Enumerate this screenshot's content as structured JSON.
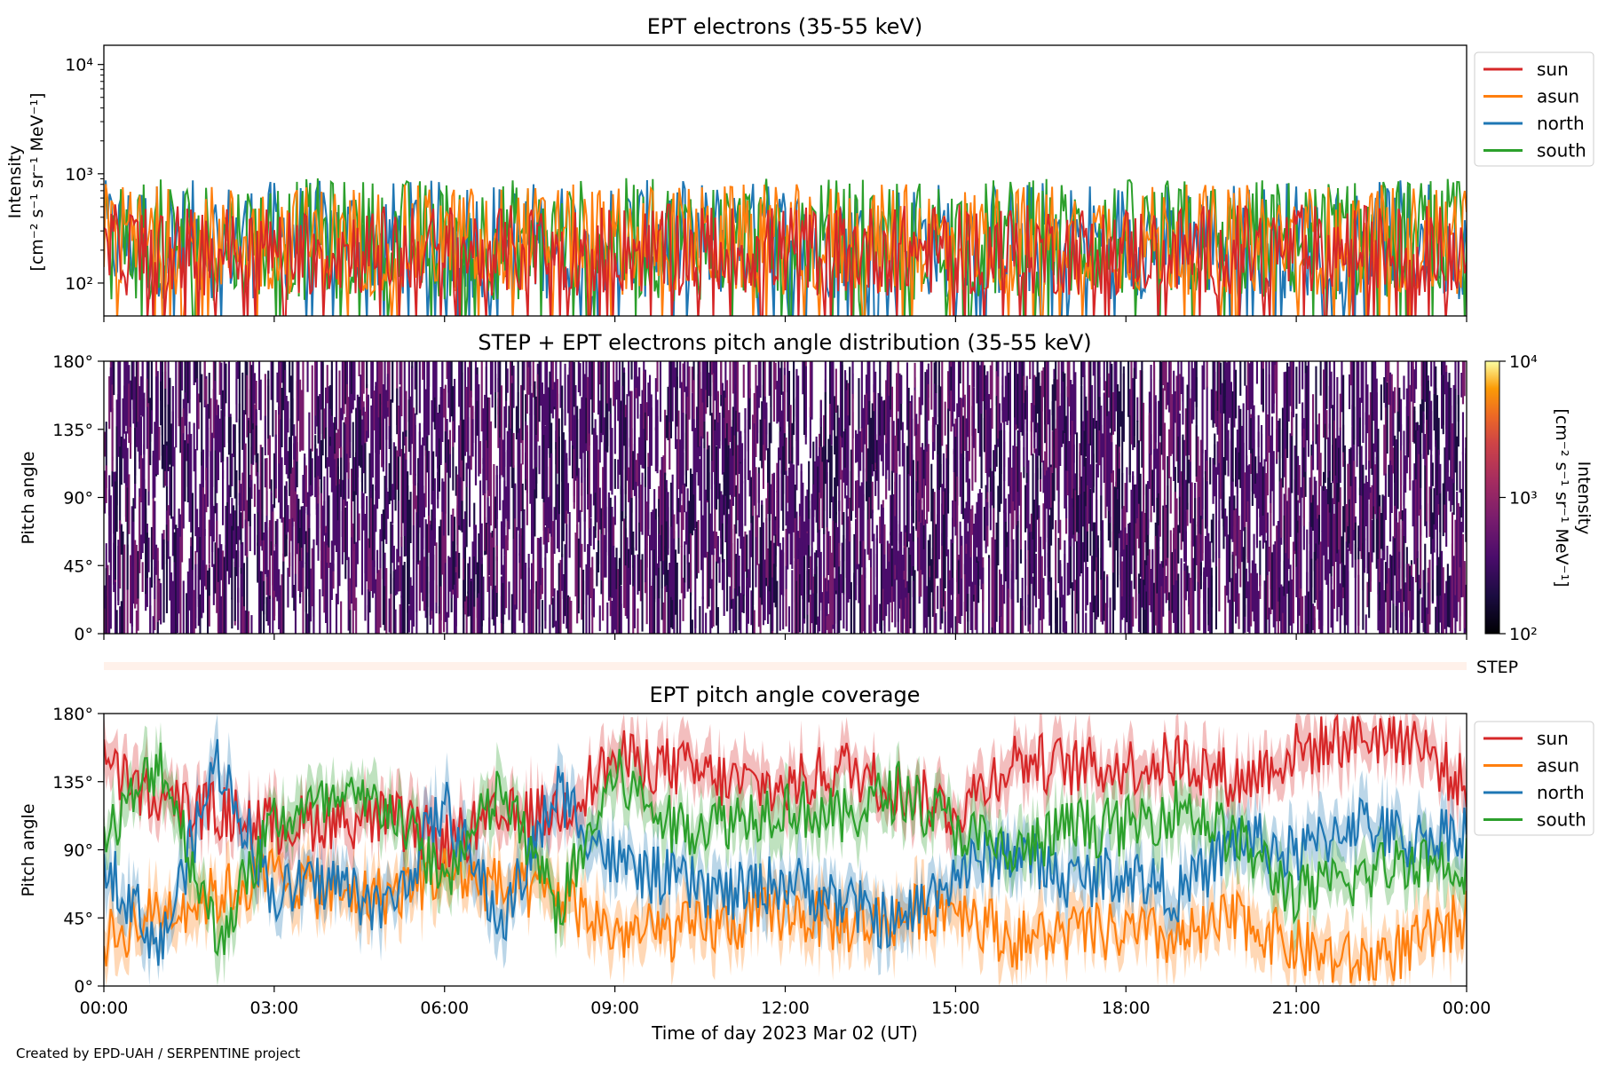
{
  "footer": "Created by EPD-UAH / SERPENTINE project",
  "series_colors": {
    "sun": "#d62728",
    "asun": "#ff7f0e",
    "north": "#1f77b4",
    "south": "#2ca02c"
  },
  "chart_data": [
    {
      "type": "line",
      "title": "EPT electrons (35-55 keV)",
      "ylabel_line1": "Intensity",
      "ylabel_line2": "[cm⁻² s⁻¹ sr⁻¹ MeV⁻¹]",
      "yscale": "log",
      "ylim": [
        50,
        15000
      ],
      "yticks": [
        "10²",
        "10³",
        "10⁴"
      ],
      "x_range": [
        "2023-03-02 00:00",
        "2023-03-03 00:00"
      ],
      "legend_position": "outside-right",
      "legend": [
        "sun",
        "asun",
        "north",
        "south"
      ],
      "series": [
        {
          "name": "sun",
          "typical_range": [
            100,
            500
          ],
          "median": 200
        },
        {
          "name": "asun",
          "typical_range": [
            100,
            700
          ],
          "median": 250
        },
        {
          "name": "north",
          "typical_range": [
            80,
            650
          ],
          "median": 250
        },
        {
          "name": "south",
          "typical_range": [
            80,
            700
          ],
          "median": 250
        }
      ]
    },
    {
      "type": "heatmap",
      "title": "STEP + EPT electrons pitch angle distribution (35-55 keV)",
      "ylabel": "Pitch angle",
      "ylim": [
        0,
        180
      ],
      "yticks": [
        "0°",
        "45°",
        "90°",
        "135°",
        "180°"
      ],
      "x_range": [
        "2023-03-02 00:00",
        "2023-03-03 00:00"
      ],
      "colorbar": {
        "label_line1": "Intensity",
        "label_line2": "[cm⁻² s⁻¹ sr⁻¹ MeV⁻¹]",
        "scale": "log",
        "range": [
          100,
          10000
        ],
        "ticks": [
          "10²",
          "10³",
          "10⁴"
        ],
        "colormap": "inferno"
      },
      "typical_intensity_range": [
        150,
        500
      ],
      "step_strip_label": "STEP"
    },
    {
      "type": "line",
      "title": "EPT pitch angle coverage",
      "ylabel": "Pitch angle",
      "xlabel": "Time of day 2023 Mar 02 (UT)",
      "ylim": [
        0,
        180
      ],
      "yticks": [
        "0°",
        "45°",
        "90°",
        "135°",
        "180°"
      ],
      "xticks": [
        "00:00",
        "03:00",
        "06:00",
        "09:00",
        "12:00",
        "15:00",
        "18:00",
        "21:00",
        "00:00"
      ],
      "legend_position": "outside-right",
      "legend": [
        "sun",
        "asun",
        "north",
        "south"
      ],
      "bands": "shaded ± spread around each line",
      "series": [
        {
          "name": "sun",
          "x": [
            "00:00",
            "01:00",
            "02:00",
            "03:00",
            "04:00",
            "05:00",
            "06:00",
            "07:00",
            "08:00",
            "09:00",
            "10:00",
            "11:00",
            "12:00",
            "13:00",
            "14:00",
            "15:00",
            "16:00",
            "17:00",
            "18:00",
            "19:00",
            "20:00",
            "21:00",
            "22:00",
            "23:00",
            "24:00"
          ],
          "values": [
            145,
            120,
            115,
            105,
            110,
            110,
            95,
            110,
            115,
            150,
            145,
            135,
            130,
            145,
            130,
            115,
            150,
            145,
            145,
            150,
            135,
            155,
            165,
            165,
            130
          ]
        },
        {
          "name": "asun",
          "x": [
            "00:00",
            "01:00",
            "02:00",
            "03:00",
            "04:00",
            "05:00",
            "06:00",
            "07:00",
            "08:00",
            "09:00",
            "10:00",
            "11:00",
            "12:00",
            "13:00",
            "14:00",
            "15:00",
            "16:00",
            "17:00",
            "18:00",
            "19:00",
            "20:00",
            "21:00",
            "22:00",
            "23:00",
            "24:00"
          ],
          "values": [
            30,
            50,
            60,
            75,
            60,
            60,
            75,
            65,
            60,
            35,
            35,
            40,
            50,
            40,
            45,
            55,
            30,
            35,
            35,
            30,
            45,
            25,
            15,
            25,
            45
          ]
        },
        {
          "name": "north",
          "x": [
            "00:00",
            "01:00",
            "02:00",
            "03:00",
            "04:00",
            "05:00",
            "06:00",
            "07:00",
            "08:00",
            "09:00",
            "10:00",
            "11:00",
            "12:00",
            "13:00",
            "14:00",
            "15:00",
            "16:00",
            "17:00",
            "18:00",
            "19:00",
            "20:00",
            "21:00",
            "22:00",
            "23:00",
            "24:00"
          ],
          "values": [
            85,
            25,
            150,
            60,
            70,
            50,
            120,
            40,
            130,
            80,
            70,
            60,
            70,
            55,
            40,
            75,
            90,
            70,
            75,
            60,
            100,
            85,
            110,
            95,
            105
          ]
        },
        {
          "name": "south",
          "x": [
            "00:00",
            "01:00",
            "02:00",
            "03:00",
            "04:00",
            "05:00",
            "06:00",
            "07:00",
            "08:00",
            "09:00",
            "10:00",
            "11:00",
            "12:00",
            "13:00",
            "14:00",
            "15:00",
            "16:00",
            "17:00",
            "18:00",
            "19:00",
            "20:00",
            "21:00",
            "22:00",
            "23:00",
            "24:00"
          ],
          "values": [
            95,
            150,
            30,
            110,
            120,
            120,
            70,
            130,
            50,
            140,
            105,
            110,
            120,
            110,
            130,
            105,
            85,
            105,
            105,
            120,
            95,
            60,
            70,
            85,
            80
          ]
        }
      ]
    }
  ]
}
